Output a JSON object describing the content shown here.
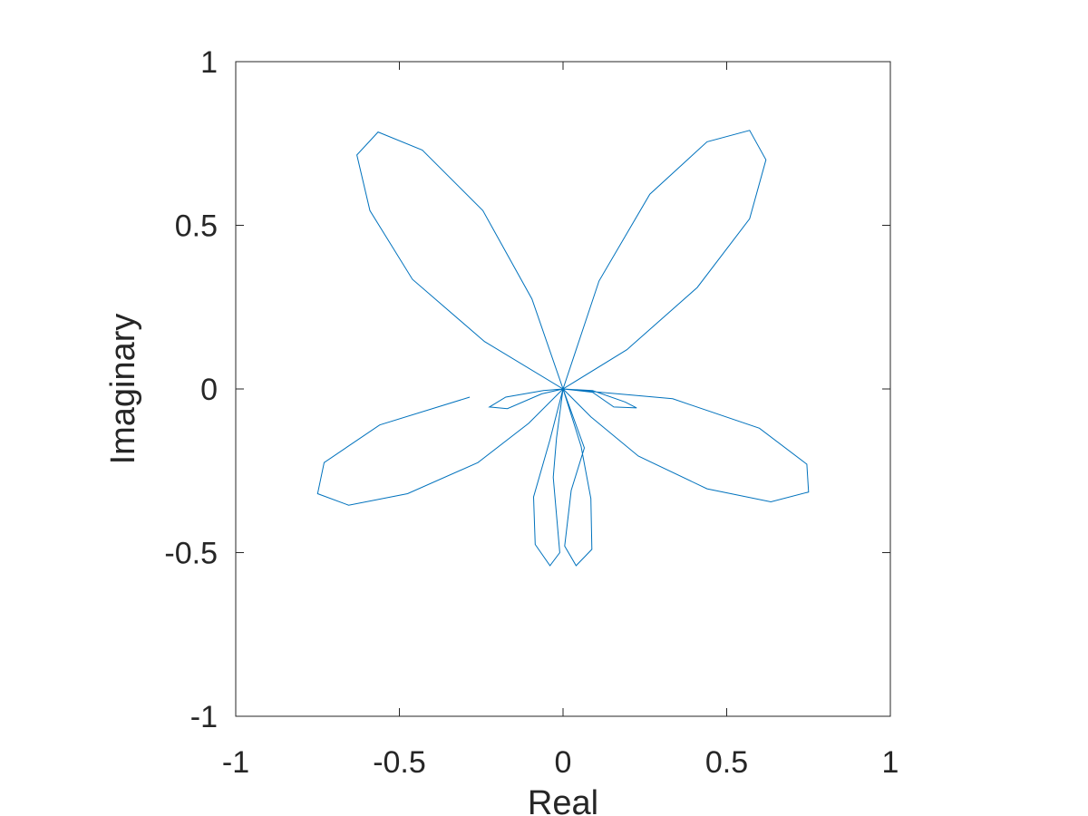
{
  "chart_data": {
    "type": "line",
    "title": "",
    "xlabel": "Real",
    "ylabel": "Imaginary",
    "xlim": [
      -1,
      1
    ],
    "ylim": [
      -1,
      1
    ],
    "xticks": [
      "-1",
      "-0.5",
      "0",
      "0.5",
      "1"
    ],
    "yticks": [
      "1",
      "0.5",
      "0",
      "-0.5",
      "-1"
    ],
    "xtick_values": [
      -1,
      -0.5,
      0,
      0.5,
      1
    ],
    "ytick_values": [
      1,
      0.5,
      0,
      -0.5,
      -1
    ],
    "grid": false,
    "line_color": "#0072BD",
    "series": [
      {
        "name": "",
        "points": [
          [
            -0.285,
            -0.025
          ],
          [
            -0.56,
            -0.11
          ],
          [
            -0.73,
            -0.225
          ],
          [
            -0.75,
            -0.32
          ],
          [
            -0.655,
            -0.355
          ],
          [
            -0.475,
            -0.32
          ],
          [
            -0.26,
            -0.225
          ],
          [
            -0.105,
            -0.105
          ],
          [
            0,
            0
          ],
          [
            -0.095,
            0.275
          ],
          [
            -0.245,
            0.545
          ],
          [
            -0.43,
            0.73
          ],
          [
            -0.565,
            0.785
          ],
          [
            -0.63,
            0.715
          ],
          [
            -0.59,
            0.545
          ],
          [
            -0.46,
            0.335
          ],
          [
            -0.24,
            0.145
          ],
          [
            0,
            0
          ],
          [
            0.11,
            0.33
          ],
          [
            0.265,
            0.595
          ],
          [
            0.44,
            0.755
          ],
          [
            0.57,
            0.79
          ],
          [
            0.62,
            0.7
          ],
          [
            0.57,
            0.52
          ],
          [
            0.41,
            0.31
          ],
          [
            0.195,
            0.12
          ],
          [
            0,
            0
          ],
          [
            0.335,
            -0.03
          ],
          [
            0.6,
            -0.12
          ],
          [
            0.745,
            -0.23
          ],
          [
            0.75,
            -0.315
          ],
          [
            0.635,
            -0.345
          ],
          [
            0.44,
            -0.305
          ],
          [
            0.23,
            -0.205
          ],
          [
            0.085,
            -0.085
          ],
          [
            0,
            0
          ],
          [
            0.055,
            -0.175
          ],
          [
            0.085,
            -0.335
          ],
          [
            0.088,
            -0.49
          ],
          [
            0.04,
            -0.54
          ],
          [
            0.005,
            -0.48
          ],
          [
            0.025,
            -0.31
          ],
          [
            0.065,
            -0.18
          ],
          [
            0,
            0
          ],
          [
            -0.04,
            -0.155
          ],
          [
            -0.09,
            -0.33
          ],
          [
            -0.085,
            -0.475
          ],
          [
            -0.04,
            -0.54
          ],
          [
            -0.01,
            -0.5
          ],
          [
            -0.03,
            -0.27
          ],
          [
            -0.02,
            -0.15
          ],
          [
            0,
            0
          ],
          [
            0.09,
            -0.01
          ],
          [
            0.155,
            -0.055
          ],
          [
            0.225,
            -0.058
          ],
          [
            0.19,
            -0.04
          ],
          [
            0.09,
            -0.005
          ],
          [
            0,
            0
          ],
          [
            -0.06,
            -0.005
          ],
          [
            -0.175,
            -0.025
          ],
          [
            -0.225,
            -0.055
          ],
          [
            -0.17,
            -0.06
          ],
          [
            -0.065,
            -0.015
          ],
          [
            0,
            0
          ]
        ]
      }
    ]
  }
}
